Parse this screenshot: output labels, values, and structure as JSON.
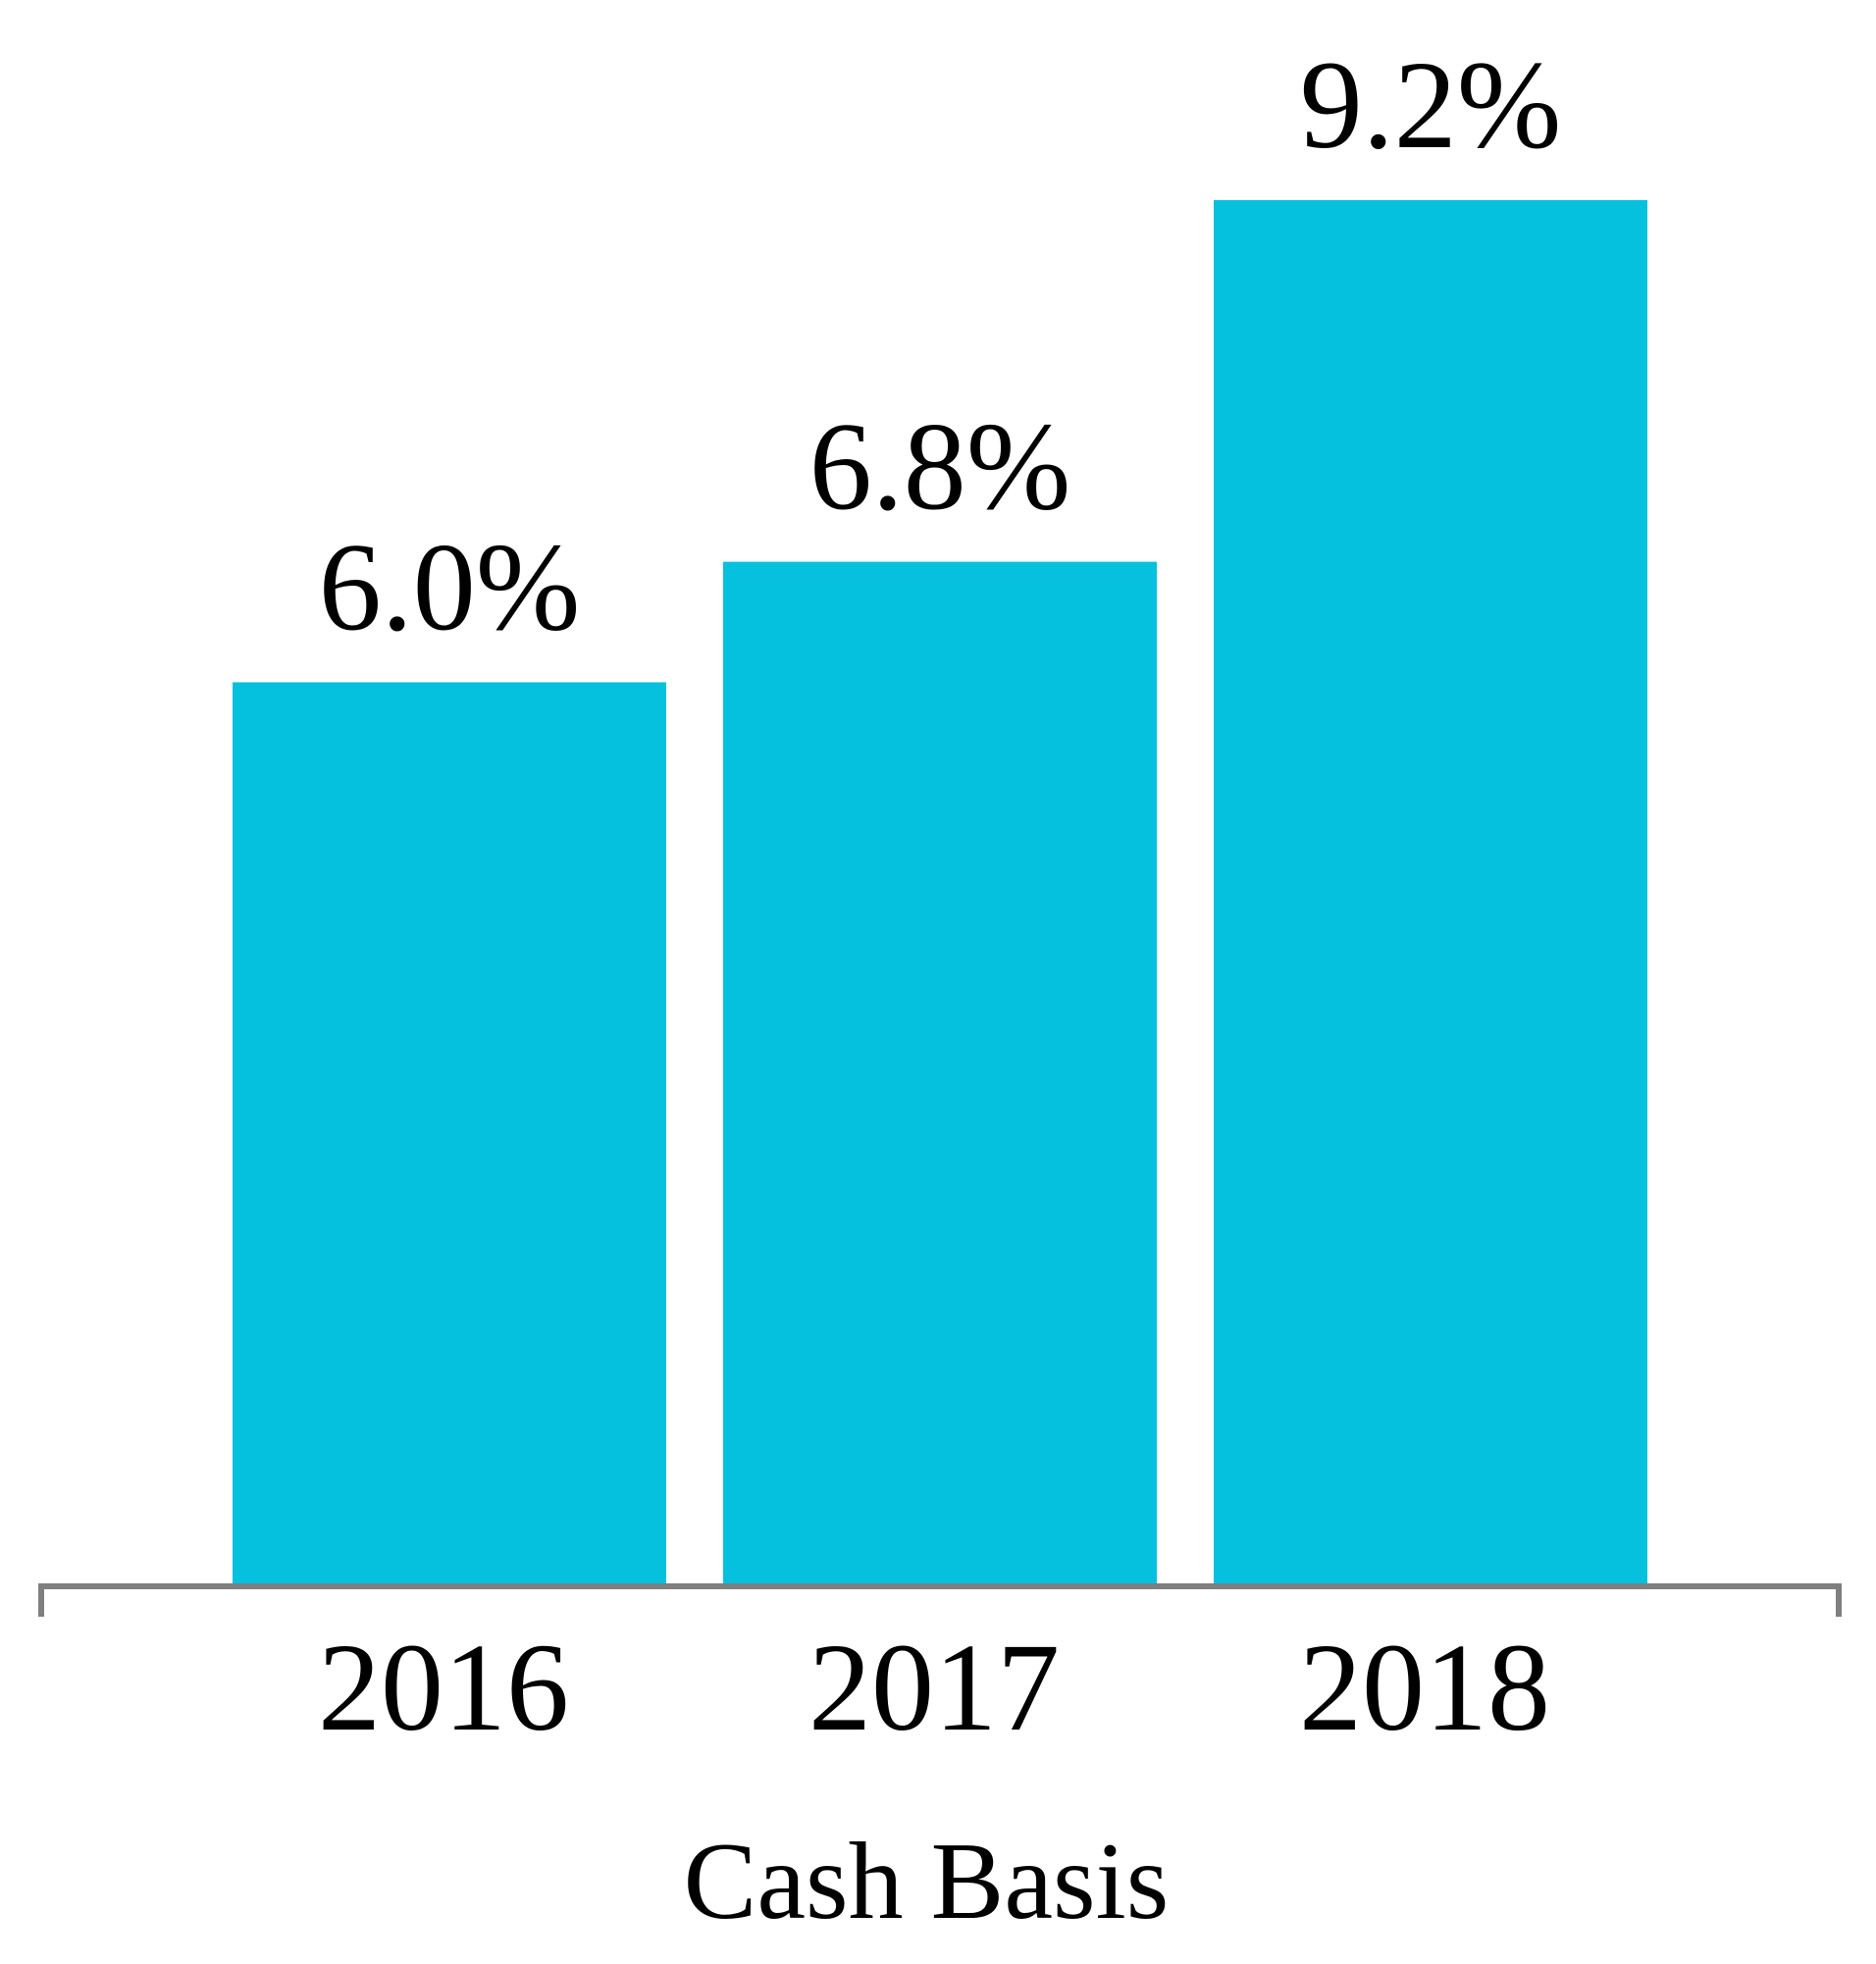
{
  "chart_data": {
    "type": "bar",
    "categories": [
      "2016",
      "2017",
      "2018"
    ],
    "values": [
      6.0,
      6.8,
      9.2
    ],
    "data_labels": [
      "6.0%",
      "6.8%",
      "9.2%"
    ],
    "title": "",
    "xlabel": "Cash Basis",
    "ylabel": "",
    "ylim": [
      0,
      10
    ],
    "grid": false,
    "legend": "none",
    "bar_color": "#06C1DD",
    "axis_color": "#7F7F7F"
  }
}
